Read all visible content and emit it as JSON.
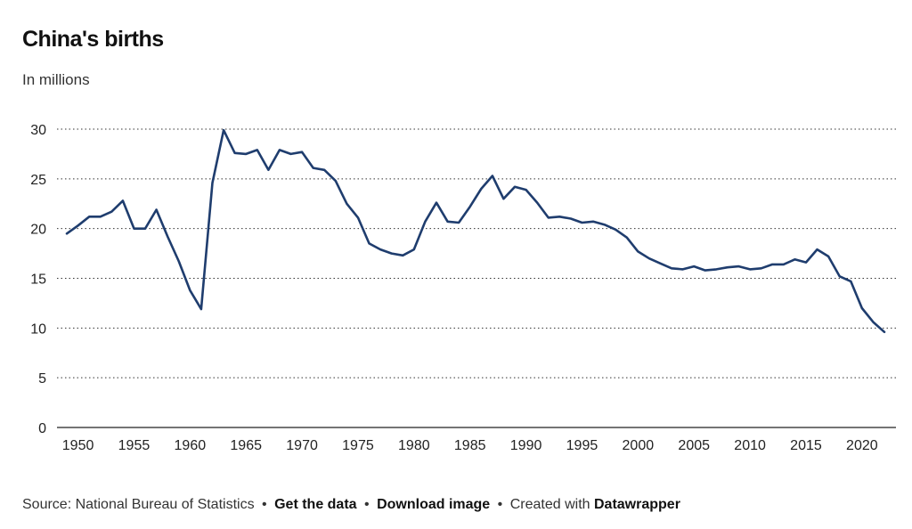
{
  "header": {
    "title": "China's births",
    "subtitle": "In millions"
  },
  "footer": {
    "source": "Source: National Bureau of Statistics",
    "separator": "•",
    "get_data": "Get the data",
    "download_image": "Download image",
    "created_with": "Created with",
    "datawrapper": "Datawrapper"
  },
  "colors": {
    "line": "#1f3d6e",
    "grid": "#333333"
  },
  "chart_data": {
    "type": "line",
    "title": "China's births",
    "ylabel": "In millions",
    "xlabel": "",
    "xlim": [
      1949,
      2022
    ],
    "ylim": [
      0,
      30
    ],
    "yticks": [
      0,
      5,
      10,
      15,
      20,
      25,
      30
    ],
    "xticks": [
      1950,
      1955,
      1960,
      1965,
      1970,
      1975,
      1980,
      1985,
      1990,
      1995,
      2000,
      2005,
      2010,
      2015,
      2020
    ],
    "grid": true,
    "series": [
      {
        "name": "Births",
        "x": [
          1949,
          1950,
          1951,
          1952,
          1953,
          1954,
          1955,
          1956,
          1957,
          1958,
          1959,
          1960,
          1961,
          1962,
          1963,
          1964,
          1965,
          1966,
          1967,
          1968,
          1969,
          1970,
          1971,
          1972,
          1973,
          1974,
          1975,
          1976,
          1977,
          1978,
          1979,
          1980,
          1981,
          1982,
          1983,
          1984,
          1985,
          1986,
          1987,
          1988,
          1989,
          1990,
          1991,
          1992,
          1993,
          1994,
          1995,
          1996,
          1997,
          1998,
          1999,
          2000,
          2001,
          2002,
          2003,
          2004,
          2005,
          2006,
          2007,
          2008,
          2009,
          2010,
          2011,
          2012,
          2013,
          2014,
          2015,
          2016,
          2017,
          2018,
          2019,
          2020,
          2021,
          2022
        ],
        "values": [
          19.5,
          20.3,
          21.2,
          21.2,
          21.7,
          22.8,
          20.0,
          20.0,
          21.9,
          19.2,
          16.7,
          13.8,
          11.9,
          24.6,
          29.9,
          27.6,
          27.5,
          27.9,
          25.9,
          27.9,
          27.5,
          27.7,
          26.1,
          25.9,
          24.8,
          22.5,
          21.1,
          18.5,
          17.9,
          17.5,
          17.3,
          17.9,
          20.7,
          22.6,
          20.7,
          20.6,
          22.2,
          24.0,
          25.3,
          23.0,
          24.2,
          23.9,
          22.6,
          21.1,
          21.2,
          21.0,
          20.6,
          20.7,
          20.4,
          19.9,
          19.1,
          17.7,
          17.0,
          16.5,
          16.0,
          15.9,
          16.2,
          15.8,
          15.9,
          16.1,
          16.2,
          15.9,
          16.0,
          16.4,
          16.4,
          16.9,
          16.6,
          17.9,
          17.2,
          15.2,
          14.7,
          12.0,
          10.6,
          9.6
        ]
      }
    ]
  }
}
